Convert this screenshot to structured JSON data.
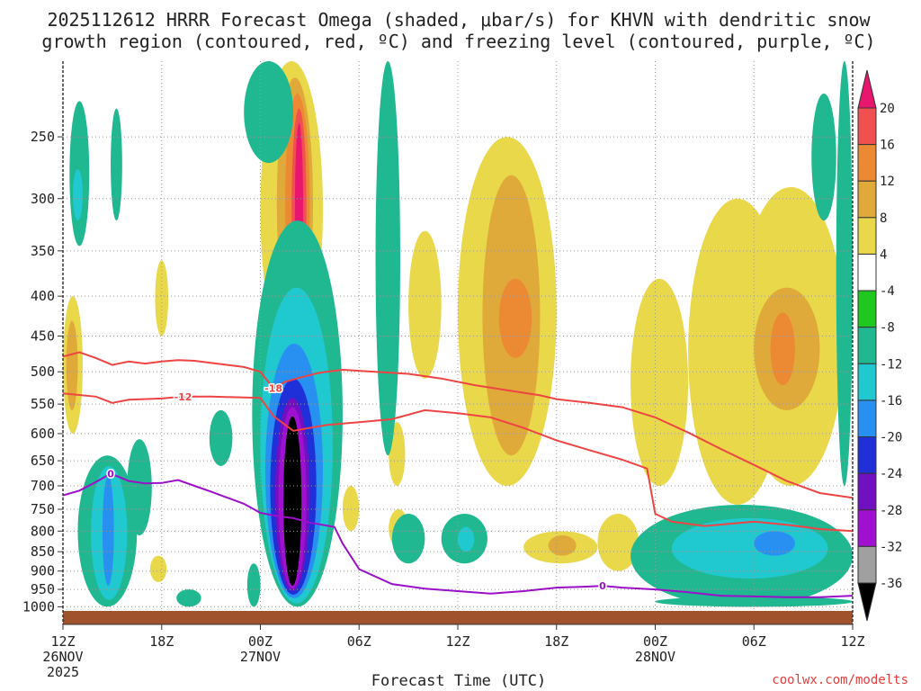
{
  "title": {
    "line1": "2025112612 HRRR Forecast Omega (shaded, μbar/s) for KHVN with dendritic snow",
    "line2": "growth region (contoured, red, ºC) and freezing level (contoured, purple, ºC)"
  },
  "credit": "coolwx.com/modelts",
  "colors": {
    "ground": "#a0522d",
    "dgz_contour": "#ee4444",
    "freezing_contour": "#9a10c8",
    "grid": "#999999"
  },
  "chart_data": {
    "type": "heatmap",
    "xlabel": "Forecast Time (UTC)",
    "x_ticks": [
      {
        "hour": 0,
        "label": "12Z",
        "sub1": "26NOV",
        "sub2": "2025"
      },
      {
        "hour": 6,
        "label": "18Z",
        "sub1": "",
        "sub2": ""
      },
      {
        "hour": 12,
        "label": "00Z",
        "sub1": "27NOV",
        "sub2": ""
      },
      {
        "hour": 18,
        "label": "06Z",
        "sub1": "",
        "sub2": ""
      },
      {
        "hour": 24,
        "label": "12Z",
        "sub1": "",
        "sub2": ""
      },
      {
        "hour": 30,
        "label": "18Z",
        "sub1": "",
        "sub2": ""
      },
      {
        "hour": 36,
        "label": "00Z",
        "sub1": "28NOV",
        "sub2": ""
      },
      {
        "hour": 42,
        "label": "06Z",
        "sub1": "",
        "sub2": ""
      },
      {
        "hour": 48,
        "label": "12Z",
        "sub1": "",
        "sub2": ""
      }
    ],
    "xlim": [
      0,
      48
    ],
    "ylabel": "",
    "y_ticks": [
      250,
      300,
      350,
      400,
      450,
      500,
      550,
      600,
      650,
      700,
      750,
      800,
      850,
      900,
      950,
      1000
    ],
    "ylim": [
      200,
      1015
    ],
    "y_scale": "log-pressure",
    "colorbar": {
      "levels": [
        "20",
        "16",
        "12",
        "8",
        "4",
        "-4",
        "-8",
        "-12",
        "-16",
        "-20",
        "-24",
        "-28",
        "-32",
        "-36"
      ],
      "colors": [
        "#e8166e",
        "#f05050",
        "#ec8a34",
        "#e0aa3a",
        "#e8d84a",
        "#ffffff",
        "#1ec81e",
        "#20b890",
        "#20c8d0",
        "#2890f0",
        "#2030d8",
        "#7010c0",
        "#a010d0",
        "#a0a0a0",
        "#000000"
      ]
    },
    "contours": {
      "dgz": [
        {
          "label": "-18",
          "label_at": [
            12.8,
            525
          ],
          "points": [
            [
              0,
              478
            ],
            [
              1,
              472
            ],
            [
              2,
              480
            ],
            [
              3,
              490
            ],
            [
              4,
              485
            ],
            [
              5,
              488
            ],
            [
              6,
              485
            ],
            [
              7,
              483
            ],
            [
              8,
              484
            ],
            [
              10,
              490
            ],
            [
              11,
              493
            ],
            [
              12,
              500
            ],
            [
              12.8,
              525
            ],
            [
              13.5,
              515
            ],
            [
              14.5,
              508
            ],
            [
              15.5,
              502
            ],
            [
              16,
              500
            ],
            [
              17,
              497
            ],
            [
              19,
              500
            ],
            [
              21,
              503
            ],
            [
              23,
              510
            ],
            [
              25,
              520
            ],
            [
              27,
              528
            ],
            [
              29,
              536
            ],
            [
              30,
              542
            ],
            [
              32,
              548
            ],
            [
              34,
              555
            ],
            [
              36,
              572
            ],
            [
              38,
              598
            ],
            [
              40,
              628
            ],
            [
              42,
              658
            ],
            [
              44,
              690
            ],
            [
              46,
              715
            ],
            [
              48,
              725
            ]
          ]
        },
        {
          "label": "-12",
          "label_at": [
            7.3,
            538
          ],
          "points": [
            [
              0,
              533
            ],
            [
              2,
              538
            ],
            [
              3,
              548
            ],
            [
              4,
              543
            ],
            [
              6,
              541
            ],
            [
              7.3,
              538
            ],
            [
              9,
              538
            ],
            [
              12,
              540
            ],
            [
              12.8,
              570
            ],
            [
              14,
              595
            ],
            [
              16,
              585
            ],
            [
              18,
              580
            ],
            [
              20,
              575
            ],
            [
              22,
              560
            ],
            [
              24,
              565
            ],
            [
              26,
              572
            ],
            [
              28,
              590
            ],
            [
              30,
              612
            ],
            [
              32,
              630
            ],
            [
              34,
              648
            ],
            [
              35.5,
              665
            ],
            [
              35.8,
              720
            ],
            [
              36,
              760
            ],
            [
              37,
              778
            ],
            [
              39,
              788
            ],
            [
              42,
              778
            ],
            [
              44,
              785
            ],
            [
              46,
              795
            ],
            [
              48,
              800
            ]
          ]
        }
      ],
      "freezing": {
        "label": "0",
        "label_at_1": [
          2.9,
          675
        ],
        "label_at_2": [
          32.8,
          940
        ],
        "points": [
          [
            0,
            720
          ],
          [
            1,
            710
          ],
          [
            2,
            692
          ],
          [
            2.9,
            675
          ],
          [
            4,
            690
          ],
          [
            5,
            695
          ],
          [
            6,
            694
          ],
          [
            7,
            688
          ],
          [
            8,
            700
          ],
          [
            9,
            712
          ],
          [
            10,
            725
          ],
          [
            11,
            738
          ],
          [
            12,
            758
          ],
          [
            13,
            765
          ],
          [
            14,
            770
          ],
          [
            15,
            780
          ],
          [
            16.5,
            790
          ],
          [
            17,
            830
          ],
          [
            18,
            895
          ],
          [
            20,
            935
          ],
          [
            22,
            948
          ],
          [
            24,
            955
          ],
          [
            26,
            962
          ],
          [
            28,
            955
          ],
          [
            30,
            945
          ],
          [
            32,
            942
          ],
          [
            32.8,
            940
          ],
          [
            34,
            945
          ],
          [
            36,
            950
          ],
          [
            38,
            958
          ],
          [
            40,
            968
          ],
          [
            42,
            970
          ],
          [
            44,
            972
          ],
          [
            46,
            972
          ],
          [
            48,
            968
          ]
        ]
      }
    },
    "omega_regions": [
      {
        "level": "-8",
        "t": [
          0.4,
          1.6
        ],
        "p": [
          225,
          345
        ]
      },
      {
        "level": "-12",
        "t": [
          0.6,
          1.2
        ],
        "p": [
          275,
          320
        ]
      },
      {
        "level": "-8",
        "t": [
          2.9,
          3.6
        ],
        "p": [
          230,
          320
        ]
      },
      {
        "level": "-8",
        "t": [
          1.8,
          2.1
        ],
        "p": [
          780,
          820
        ]
      },
      {
        "level": "-8",
        "t": [
          0.9,
          4.5
        ],
        "p": [
          640,
          1000
        ]
      },
      {
        "level": "-12",
        "t": [
          1.7,
          3.9
        ],
        "p": [
          660,
          980
        ]
      },
      {
        "level": "-16",
        "t": [
          2.4,
          3.1
        ],
        "p": [
          680,
          940
        ]
      },
      {
        "level": "-8",
        "t": [
          3.9,
          5.4
        ],
        "p": [
          610,
          810
        ]
      },
      {
        "level": "-8",
        "t": [
          8.9,
          10.3
        ],
        "p": [
          560,
          660
        ]
      },
      {
        "level": "-8",
        "t": [
          6.9,
          8.4
        ],
        "p": [
          950,
          1000
        ]
      },
      {
        "level": "-8",
        "t": [
          11.0,
          14.0
        ],
        "p": [
          200,
          270
        ]
      },
      {
        "level": "-8",
        "t": [
          11.5,
          17.0
        ],
        "p": [
          320,
          1000
        ]
      },
      {
        "level": "-12",
        "t": [
          12.0,
          16.4
        ],
        "p": [
          390,
          990
        ]
      },
      {
        "level": "-16",
        "t": [
          12.3,
          15.8
        ],
        "p": [
          460,
          975
        ]
      },
      {
        "level": "-20",
        "t": [
          12.6,
          15.4
        ],
        "p": [
          510,
          965
        ]
      },
      {
        "level": "-24",
        "t": [
          12.9,
          15.0
        ],
        "p": [
          540,
          955
        ]
      },
      {
        "level": "-28",
        "t": [
          13.1,
          14.8
        ],
        "p": [
          555,
          948
        ]
      },
      {
        "level": "-36",
        "t": [
          13.4,
          14.5
        ],
        "p": [
          570,
          940
        ]
      },
      {
        "level": "-8",
        "t": [
          11.2,
          12.0
        ],
        "p": [
          880,
          1000
        ]
      },
      {
        "level": "-8",
        "t": [
          19.0,
          20.5
        ],
        "p": [
          200,
          640
        ]
      },
      {
        "level": "-8",
        "t": [
          20.0,
          22.0
        ],
        "p": [
          760,
          880
        ]
      },
      {
        "level": "-8",
        "t": [
          23.0,
          25.8
        ],
        "p": [
          760,
          880
        ]
      },
      {
        "level": "-12",
        "t": [
          24.0,
          25.0
        ],
        "p": [
          790,
          850
        ]
      },
      {
        "level": "-8",
        "t": [
          47.0,
          48.0
        ],
        "p": [
          200,
          700
        ]
      },
      {
        "level": "-8",
        "t": [
          45.5,
          47.0
        ],
        "p": [
          220,
          320
        ]
      },
      {
        "level": "-8",
        "t": [
          34.5,
          48.0
        ],
        "p": [
          740,
          1000
        ]
      },
      {
        "level": "-12",
        "t": [
          37.0,
          46.5
        ],
        "p": [
          770,
          920
        ]
      },
      {
        "level": "-16",
        "t": [
          42.0,
          44.5
        ],
        "p": [
          800,
          860
        ]
      },
      {
        "level": "-8",
        "t": [
          36.0,
          48.0
        ],
        "p": [
          970,
          1000
        ]
      }
    ],
    "omega_pos_regions": [
      {
        "level": "4",
        "t": [
          0.0,
          1.2
        ],
        "p": [
          400,
          600
        ]
      },
      {
        "level": "8",
        "t": [
          0.2,
          0.9
        ],
        "p": [
          430,
          560
        ]
      },
      {
        "level": "4",
        "t": [
          5.6,
          6.4
        ],
        "p": [
          360,
          450
        ]
      },
      {
        "level": "4",
        "t": [
          5.3,
          6.3
        ],
        "p": [
          860,
          930
        ]
      },
      {
        "level": "4",
        "t": [
          12.0,
          15.8
        ],
        "p": [
          200,
          480
        ]
      },
      {
        "level": "8",
        "t": [
          13.0,
          15.2
        ],
        "p": [
          210,
          440
        ]
      },
      {
        "level": "12",
        "t": [
          13.5,
          15.0
        ],
        "p": [
          220,
          420
        ]
      },
      {
        "level": "16",
        "t": [
          13.9,
          14.8
        ],
        "p": [
          230,
          410
        ]
      },
      {
        "level": "20",
        "t": [
          14.1,
          14.6
        ],
        "p": [
          240,
          400
        ]
      },
      {
        "level": "4",
        "t": [
          17.0,
          18.0
        ],
        "p": [
          700,
          800
        ]
      },
      {
        "level": "4",
        "t": [
          19.8,
          20.8
        ],
        "p": [
          580,
          700
        ]
      },
      {
        "level": "4",
        "t": [
          19.8,
          21.0
        ],
        "p": [
          750,
          840
        ]
      },
      {
        "level": "4",
        "t": [
          21.0,
          23.0
        ],
        "p": [
          330,
          510
        ]
      },
      {
        "level": "4",
        "t": [
          24.0,
          30.0
        ],
        "p": [
          250,
          700
        ]
      },
      {
        "level": "8",
        "t": [
          25.5,
          29.0
        ],
        "p": [
          280,
          640
        ]
      },
      {
        "level": "12",
        "t": [
          26.5,
          28.5
        ],
        "p": [
          380,
          480
        ]
      },
      {
        "level": "4",
        "t": [
          28.0,
          32.5
        ],
        "p": [
          800,
          880
        ]
      },
      {
        "level": "8",
        "t": [
          29.5,
          31.2
        ],
        "p": [
          810,
          860
        ]
      },
      {
        "level": "4",
        "t": [
          32.5,
          35.0
        ],
        "p": [
          760,
          900
        ]
      },
      {
        "level": "4",
        "t": [
          34.5,
          38.0
        ],
        "p": [
          380,
          700
        ]
      },
      {
        "level": "4",
        "t": [
          38.0,
          44.0
        ],
        "p": [
          300,
          740
        ]
      },
      {
        "level": "4",
        "t": [
          41.0,
          47.5
        ],
        "p": [
          290,
          700
        ]
      },
      {
        "level": "8",
        "t": [
          42.0,
          46.0
        ],
        "p": [
          390,
          560
        ]
      },
      {
        "level": "12",
        "t": [
          43.0,
          44.5
        ],
        "p": [
          420,
          520
        ]
      }
    ]
  }
}
